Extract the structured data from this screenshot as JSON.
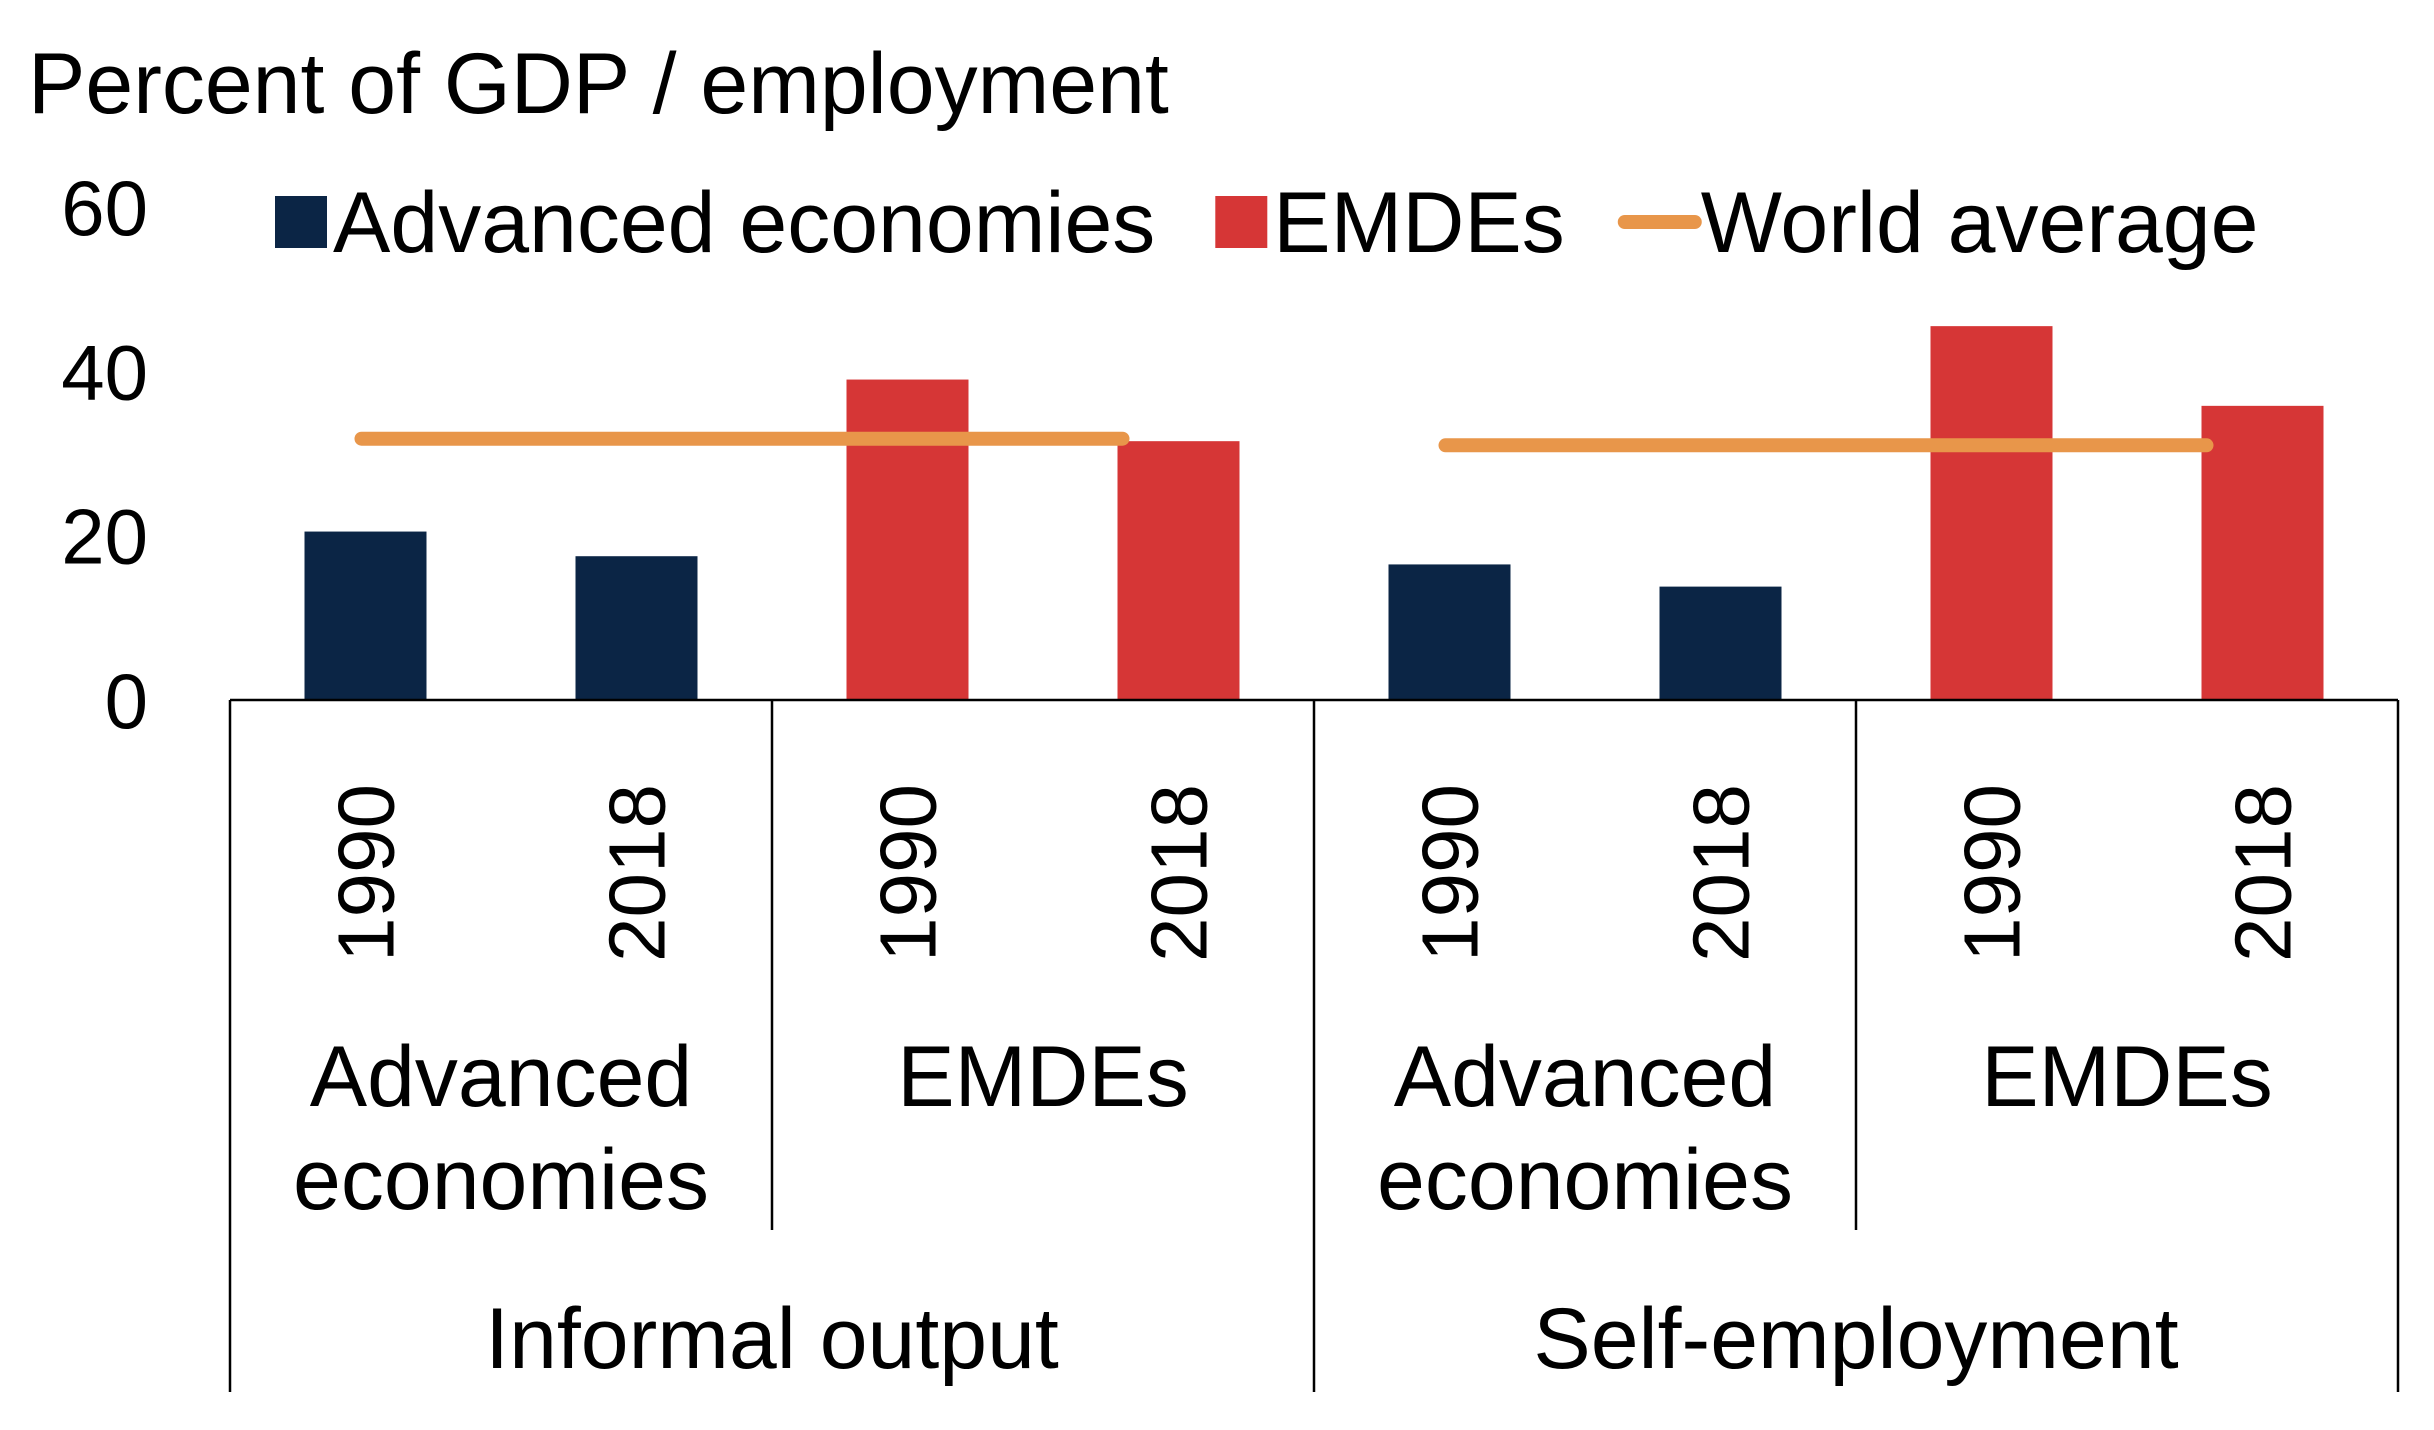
{
  "colors": {
    "advanced": "#0B2545",
    "emdes": "#D63636",
    "world": "#E8964A"
  },
  "chart_data": {
    "type": "bar",
    "ylabel": "Percent of GDP / employment",
    "ylim": [
      0,
      60
    ],
    "yticks": [
      "0",
      "20",
      "40",
      "60"
    ],
    "legend": {
      "position": "top",
      "entries": [
        {
          "label": "Advanced economies",
          "kind": "bar",
          "color_key": "advanced"
        },
        {
          "label": "EMDEs",
          "kind": "bar",
          "color_key": "emdes"
        },
        {
          "label": "World average",
          "kind": "line",
          "color_key": "world"
        }
      ]
    },
    "categories": [
      {
        "year": "1990",
        "group": "Advanced economies",
        "measure": "Informal output",
        "value": 20.5,
        "color_key": "advanced"
      },
      {
        "year": "2018",
        "group": "Advanced economies",
        "measure": "Informal output",
        "value": 17.5,
        "color_key": "advanced"
      },
      {
        "year": "1990",
        "group": "EMDEs",
        "measure": "Informal output",
        "value": 39,
        "color_key": "emdes"
      },
      {
        "year": "2018",
        "group": "EMDEs",
        "measure": "Informal output",
        "value": 31.5,
        "color_key": "emdes"
      },
      {
        "year": "1990",
        "group": "Advanced economies",
        "measure": "Self-employment",
        "value": 16.5,
        "color_key": "advanced"
      },
      {
        "year": "2018",
        "group": "Advanced economies",
        "measure": "Self-employment",
        "value": 13.8,
        "color_key": "advanced"
      },
      {
        "year": "1990",
        "group": "EMDEs",
        "measure": "Self-employment",
        "value": 45.5,
        "color_key": "emdes"
      },
      {
        "year": "2018",
        "group": "EMDEs",
        "measure": "Self-employment",
        "value": 35.8,
        "color_key": "emdes"
      }
    ],
    "group_labels": [
      {
        "lines": [
          "Advanced",
          "economies"
        ]
      },
      {
        "lines": [
          "EMDEs"
        ]
      },
      {
        "lines": [
          "Advanced",
          "economies"
        ]
      },
      {
        "lines": [
          "EMDEs"
        ]
      }
    ],
    "top_labels": [
      "Informal output",
      "Self-employment"
    ],
    "world_average": [
      {
        "measure": "Informal output",
        "value": 31.8
      },
      {
        "measure": "Self-employment",
        "value": 31
      }
    ]
  }
}
